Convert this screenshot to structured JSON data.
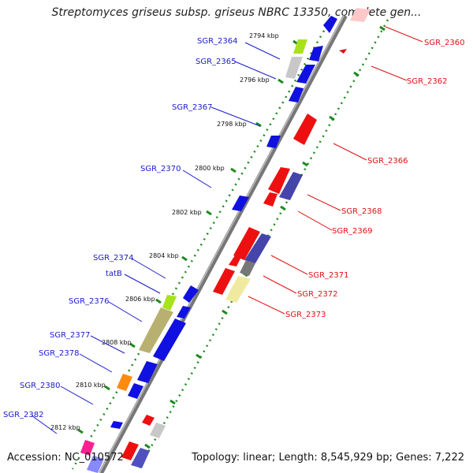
{
  "title": "Streptomyces griseus subsp. griseus NBRC 13350, complete gen...",
  "footer": {
    "accession": "Accession: NC_010572",
    "summary": "Topology: linear; Length: 8,545,929 bp; Genes: 7,222"
  },
  "colors": {
    "forward_label": "#1a1acc",
    "reverse_label": "#dd1111",
    "axis": "#888888",
    "dots": "#1e8a1e"
  },
  "kbp_ticks": [
    "2794 kbp",
    "2796 kbp",
    "2798 kbp",
    "2800 kbp",
    "2802 kbp",
    "2804 kbp",
    "2806 kbp",
    "2808 kbp",
    "2810 kbp",
    "2812 kbp"
  ],
  "forward_labels": [
    "SGR_2364",
    "SGR_2365",
    "SGR_2367",
    "SGR_2370",
    "SGR_2374",
    "tatB",
    "SGR_2376",
    "SGR_2377",
    "SGR_2378",
    "SGR_2380",
    "SGR_2382"
  ],
  "reverse_labels": [
    "SGR_2360",
    "SGR_2362",
    "SGR_2366",
    "SGR_2368",
    "SGR_2369",
    "SGR_2371",
    "SGR_2372",
    "SGR_2373"
  ]
}
